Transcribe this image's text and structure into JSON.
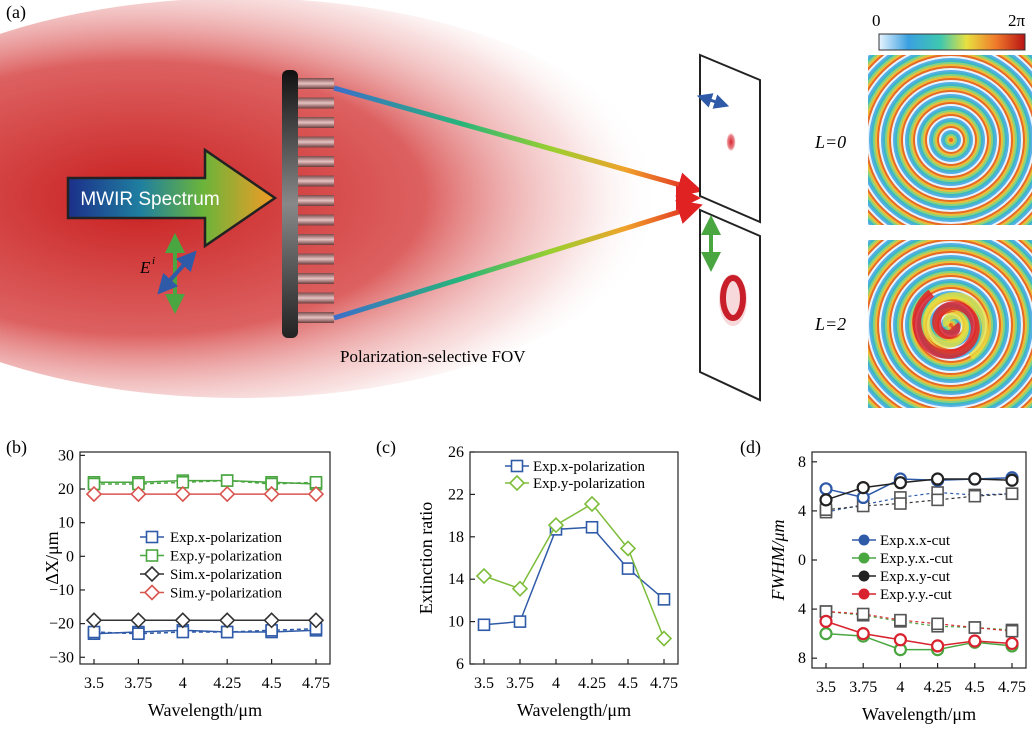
{
  "panel_a": {
    "label": "(a)",
    "arrow_text": "MWIR Spectrum",
    "e_field_label": "E",
    "e_field_sup": "i",
    "fov_label": "Polarization-selective FOV",
    "colorbar_min": "0",
    "colorbar_max": "2π",
    "l0_label": "L=0",
    "l2_label": "L=2",
    "colors": {
      "x_pol": "#2f5aa8",
      "y_pol": "#4aa640",
      "focus": "#d8222e"
    }
  },
  "chart_data": [
    {
      "id": "b",
      "panel_label": "(b)",
      "type": "line",
      "xlabel": "Wavelength/μm",
      "ylabel": "ΔX/μm",
      "categories": [
        "3.5",
        "3.75",
        "4",
        "4.25",
        "4.5",
        "4.75"
      ],
      "ylim": [
        -32,
        31
      ],
      "yticks": [
        "30",
        "20",
        "10",
        "0",
        "−10",
        "−20",
        "−30"
      ],
      "ytick_values": [
        30,
        20,
        10,
        0,
        -10,
        -20,
        -30
      ],
      "series": [
        {
          "name": "Exp.x-polarization",
          "marker": "square",
          "color": "#2f5aa8",
          "dash": "solid",
          "values": [
            -23,
            -22.5,
            -22,
            -22.5,
            -22.5,
            -22
          ],
          "values2": [
            -22.5,
            -23,
            -22.5,
            -22.5,
            -22,
            -21.5
          ]
        },
        {
          "name": "Exp.y-polarization",
          "marker": "square",
          "color": "#4aa640",
          "dash": "solid",
          "values": [
            22,
            22,
            22.5,
            22.5,
            22,
            21.5
          ],
          "values2": [
            21.5,
            21.5,
            22,
            22.5,
            21.5,
            22
          ]
        },
        {
          "name": "Sim.x-polarization",
          "marker": "diamond",
          "color": "#333333",
          "dash": "solid",
          "values": [
            -19,
            -19,
            -19,
            -19,
            -19,
            -19
          ]
        },
        {
          "name": "Sim.y-polarization",
          "marker": "diamond",
          "color": "#d9534f",
          "dash": "solid",
          "values": [
            18.5,
            18.5,
            18.5,
            18.5,
            18.5,
            18.5
          ]
        }
      ],
      "legend_entries": [
        "Exp.x-polarization",
        "Exp.y-polarization",
        "Sim.x-polarization",
        "Sim.y-polarization"
      ]
    },
    {
      "id": "c",
      "panel_label": "(c)",
      "type": "line",
      "xlabel": "Wavelength/μm",
      "ylabel": "Extinction ratio",
      "categories": [
        "3.5",
        "3.75",
        "4",
        "4.25",
        "4.5",
        "4.75"
      ],
      "ylim": [
        6,
        26
      ],
      "yticks": [
        "26",
        "22",
        "18",
        "14",
        "10",
        "6"
      ],
      "ytick_values": [
        26,
        22,
        18,
        14,
        10,
        6
      ],
      "series": [
        {
          "name": "Exp.x-polarization",
          "marker": "square",
          "color": "#2f5aa8",
          "values": [
            9.7,
            10,
            18.7,
            18.9,
            15,
            12.1
          ]
        },
        {
          "name": "Exp.y-polarization",
          "marker": "diamond",
          "color": "#7dbd3a",
          "values": [
            14.3,
            13.1,
            19.1,
            21.1,
            16.9,
            8.4
          ]
        }
      ],
      "legend_entries": [
        "Exp.x-polarization",
        "Exp.y-polarization"
      ]
    },
    {
      "id": "d",
      "panel_label": "(d)",
      "type": "line",
      "xlabel": "Wavelength/μm",
      "ylabel": "FWHM/μm",
      "categories": [
        "3.5",
        "3.75",
        "4",
        "4.25",
        "4.5",
        "4.75"
      ],
      "ylim": [
        -8.8,
        8.8
      ],
      "yticks": [
        "8",
        "4",
        "0",
        "4",
        "8"
      ],
      "ytick_values": [
        8,
        4,
        0,
        -4,
        -8
      ],
      "series": [
        {
          "name": "Exp.x.x-cut",
          "marker": "circle",
          "color": "#2f5aa8",
          "values": [
            5.8,
            5.1,
            6.6,
            6.5,
            6.6,
            6.7
          ]
        },
        {
          "name": "Exp.y.x.-cut",
          "marker": "circle",
          "color": "#4aa640",
          "values": [
            -6,
            -6.2,
            -7.3,
            -7.3,
            -6.7,
            -7
          ]
        },
        {
          "name": "Exp.x.y-cut",
          "marker": "circle",
          "color": "#222222",
          "values": [
            4.9,
            5.9,
            6.3,
            6.6,
            6.6,
            6.5
          ]
        },
        {
          "name": "Exp.y.y.-cut",
          "marker": "circle",
          "color": "#d8222e",
          "values": [
            -5,
            -6,
            -6.5,
            -7,
            -6.6,
            -6.8
          ]
        }
      ],
      "sim_series": [
        {
          "color": "#2f5aa8",
          "marker": "square",
          "values": [
            3.9,
            4.5,
            5.1,
            5.5,
            5.3,
            5.4
          ]
        },
        {
          "color": "#333333",
          "marker": "square",
          "values": [
            4.1,
            4.4,
            4.6,
            4.9,
            5.2,
            5.4
          ]
        },
        {
          "color": "#4aa640",
          "marker": "square",
          "values": [
            -4.2,
            -4.5,
            -5,
            -5.4,
            -5.5,
            -5.7
          ]
        },
        {
          "color": "#d8222e",
          "marker": "square",
          "values": [
            -4.2,
            -4.4,
            -4.9,
            -5.2,
            -5.5,
            -5.8
          ]
        }
      ],
      "legend_entries": [
        "Exp.x.x-cut",
        "Exp.y.x.-cut",
        "Exp.x.y-cut",
        "Exp.y.y.-cut"
      ]
    }
  ]
}
